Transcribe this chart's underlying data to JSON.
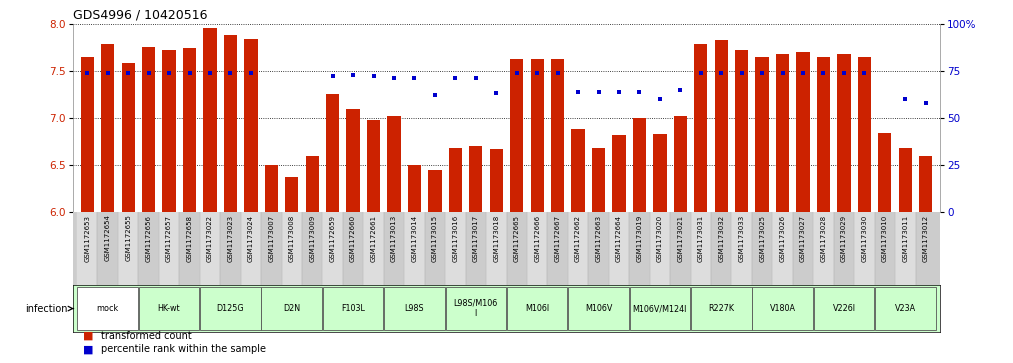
{
  "title": "GDS4996 / 10420516",
  "samples": [
    "GSM1172653",
    "GSM1172654",
    "GSM1172655",
    "GSM1172656",
    "GSM1172657",
    "GSM1172658",
    "GSM1173022",
    "GSM1173023",
    "GSM1173024",
    "GSM1173007",
    "GSM1173008",
    "GSM1173009",
    "GSM1172659",
    "GSM1172660",
    "GSM1172661",
    "GSM1173013",
    "GSM1173014",
    "GSM1173015",
    "GSM1173016",
    "GSM1173017",
    "GSM1173018",
    "GSM1172665",
    "GSM1172666",
    "GSM1172667",
    "GSM1172662",
    "GSM1172663",
    "GSM1172664",
    "GSM1173019",
    "GSM1173020",
    "GSM1173021",
    "GSM1173031",
    "GSM1173032",
    "GSM1173033",
    "GSM1173025",
    "GSM1173026",
    "GSM1173027",
    "GSM1173028",
    "GSM1173029",
    "GSM1173030",
    "GSM1173010",
    "GSM1173011",
    "GSM1173012"
  ],
  "bar_values": [
    7.65,
    7.78,
    7.58,
    7.75,
    7.72,
    7.74,
    7.95,
    7.88,
    7.84,
    6.5,
    6.37,
    6.6,
    7.25,
    7.1,
    6.98,
    7.02,
    6.5,
    6.45,
    6.68,
    6.7,
    6.67,
    7.62,
    7.63,
    7.62,
    6.88,
    6.68,
    6.82,
    7.0,
    6.83,
    7.02,
    7.78,
    7.83,
    7.72,
    7.65,
    7.68,
    7.7,
    7.65,
    7.68,
    7.65,
    6.84,
    6.68,
    6.6
  ],
  "percentile_values": [
    74,
    74,
    74,
    74,
    74,
    74,
    74,
    74,
    74,
    null,
    null,
    null,
    72,
    73,
    72,
    71,
    71,
    62,
    71,
    71,
    63,
    74,
    74,
    74,
    64,
    64,
    64,
    64,
    60,
    65,
    74,
    74,
    74,
    74,
    74,
    74,
    74,
    74,
    74,
    null,
    60,
    58
  ],
  "groups": [
    {
      "start": 0,
      "end": 2,
      "label": "mock",
      "color": "#ffffff"
    },
    {
      "start": 3,
      "end": 5,
      "label": "HK-wt",
      "color": "#ccffcc"
    },
    {
      "start": 6,
      "end": 8,
      "label": "D125G",
      "color": "#ccffcc"
    },
    {
      "start": 9,
      "end": 11,
      "label": "D2N",
      "color": "#ccffcc"
    },
    {
      "start": 12,
      "end": 14,
      "label": "F103L",
      "color": "#ccffcc"
    },
    {
      "start": 15,
      "end": 17,
      "label": "L98S",
      "color": "#ccffcc"
    },
    {
      "start": 18,
      "end": 20,
      "label": "L98S/M106\nI",
      "color": "#ccffcc"
    },
    {
      "start": 21,
      "end": 23,
      "label": "M106I",
      "color": "#ccffcc"
    },
    {
      "start": 24,
      "end": 26,
      "label": "M106V",
      "color": "#ccffcc"
    },
    {
      "start": 27,
      "end": 29,
      "label": "M106V/M124I",
      "color": "#ccffcc"
    },
    {
      "start": 30,
      "end": 32,
      "label": "R227K",
      "color": "#ccffcc"
    },
    {
      "start": 33,
      "end": 35,
      "label": "V180A",
      "color": "#ccffcc"
    },
    {
      "start": 36,
      "end": 38,
      "label": "V226I",
      "color": "#ccffcc"
    },
    {
      "start": 39,
      "end": 41,
      "label": "V23A",
      "color": "#ccffcc"
    }
  ],
  "ylim_left": [
    6.0,
    8.0
  ],
  "yticks_left": [
    6.0,
    6.5,
    7.0,
    7.5,
    8.0
  ],
  "ylim_right": [
    0,
    100
  ],
  "yticks_right": [
    0,
    25,
    50,
    75,
    100
  ],
  "bar_color": "#cc2200",
  "dot_color": "#0000cc",
  "legend_bar_label": "transformed count",
  "legend_dot_label": "percentile rank within the sample"
}
